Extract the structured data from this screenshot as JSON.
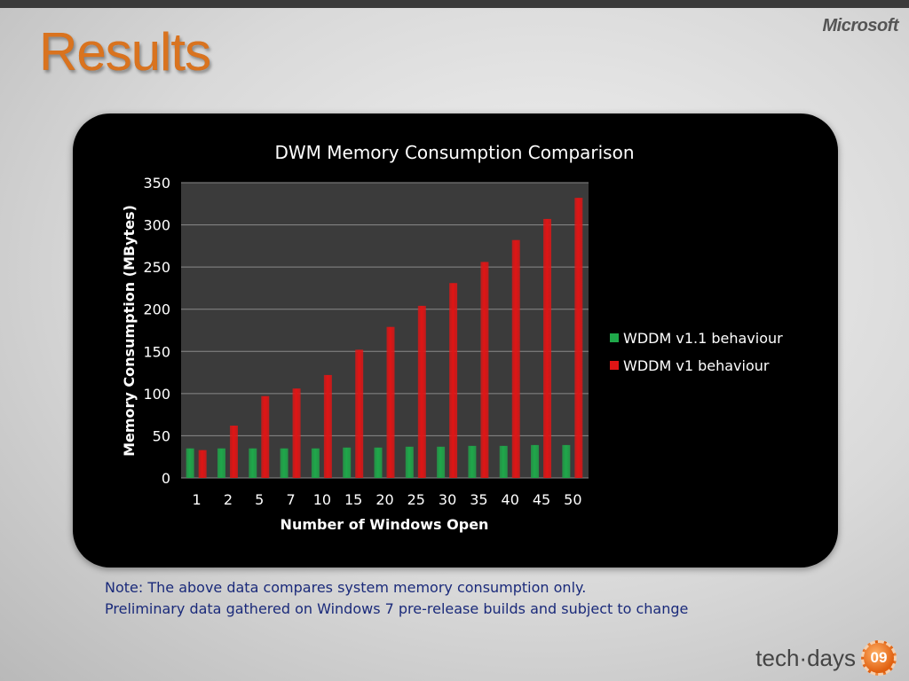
{
  "slide": {
    "title": "Results",
    "brand_logo": "Microsoft",
    "note_line1": "Note:  The above data compares system memory consumption only.",
    "note_line2": "Preliminary data gathered on Windows 7 pre-release builds and subject to change",
    "footer_text": "tech·days",
    "footer_badge": "09"
  },
  "colors": {
    "title_orange": "#d9731f",
    "note_blue": "#1a2a7a",
    "series_green": "#1fa84a",
    "series_red": "#e01515",
    "plot_bg": "#3b3b3b"
  },
  "chart_data": {
    "type": "bar",
    "title": "DWM Memory Consumption Comparison",
    "xlabel": "Number of Windows Open",
    "ylabel": "Memory Consumption (MBytes)",
    "categories": [
      "1",
      "2",
      "5",
      "7",
      "10",
      "15",
      "20",
      "25",
      "30",
      "35",
      "40",
      "45",
      "50"
    ],
    "ylim": [
      0,
      350
    ],
    "yticks": [
      0,
      50,
      100,
      150,
      200,
      250,
      300,
      350
    ],
    "grid": true,
    "legend_position": "right",
    "series": [
      {
        "name": "WDDM v1.1 behaviour",
        "color": "#1fa84a",
        "values": [
          35,
          35,
          35,
          35,
          35,
          36,
          36,
          37,
          37,
          38,
          38,
          39,
          39
        ]
      },
      {
        "name": "WDDM v1 behaviour",
        "color": "#e01515",
        "values": [
          33,
          62,
          97,
          106,
          122,
          152,
          179,
          204,
          231,
          256,
          282,
          307,
          332
        ]
      }
    ]
  }
}
